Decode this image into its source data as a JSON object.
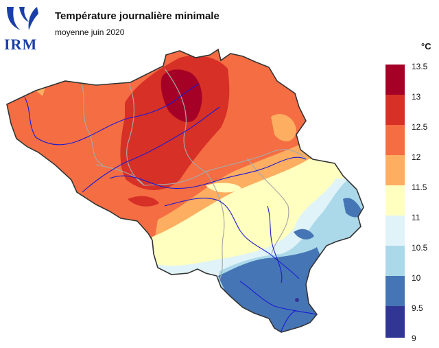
{
  "header": {
    "title": "Température journalière minimale",
    "subtitle": "moyenne juin 2020",
    "logo_text": "IRM"
  },
  "legend": {
    "unit": "°C",
    "ticks": [
      "13.5",
      "13",
      "12.5",
      "12",
      "11.5",
      "11",
      "10.5",
      "10",
      "9.5",
      "9"
    ],
    "colors": [
      "#a50026",
      "#d73027",
      "#f46d43",
      "#fdae61",
      "#fee090",
      "#ffffbf",
      "#e0f3f8",
      "#abd9e9",
      "#74add1",
      "#4575b4",
      "#313695"
    ]
  },
  "map": {
    "region": "Belgium",
    "levels": [
      {
        "range": "13-13.5",
        "color": "#a50026"
      },
      {
        "range": "12.5-13",
        "color": "#d73027"
      },
      {
        "range": "12-12.5",
        "color": "#f46d43"
      },
      {
        "range": "11.5-12",
        "color": "#fdae61"
      },
      {
        "range": "11-11.5",
        "color": "#fee090"
      },
      {
        "range": "10.5-11",
        "color": "#ffffbf"
      },
      {
        "range": "10-10.5",
        "color": "#e0f3f8"
      },
      {
        "range": "9.5-10",
        "color": "#abd9e9"
      },
      {
        "range": "9-9.5",
        "color": "#4575b4"
      }
    ]
  }
}
